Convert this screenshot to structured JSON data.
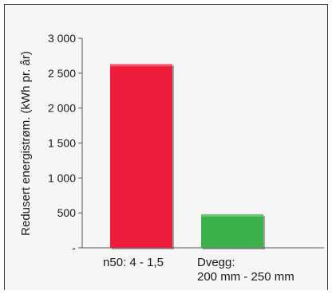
{
  "chart_data": {
    "type": "bar",
    "ylabel": "Redusert energistrøm.   (kWh pr. år)",
    "categories": [
      [
        "n50: 4 - 1,5"
      ],
      [
        "Dvegg:",
        "200 mm - 250 mm"
      ]
    ],
    "values": [
      2630,
      480
    ],
    "bar_colors": [
      "#ee1b3b",
      "#3cb04a"
    ],
    "ylim": [
      0,
      3000
    ],
    "yticks": [
      0,
      500,
      1000,
      1500,
      2000,
      2500,
      3000
    ],
    "ytick_labels": [
      "-",
      "500",
      "1 000",
      "1 500",
      "2 000",
      "2 500",
      "3 000"
    ],
    "grid": false,
    "background": "#f6f6f6"
  }
}
